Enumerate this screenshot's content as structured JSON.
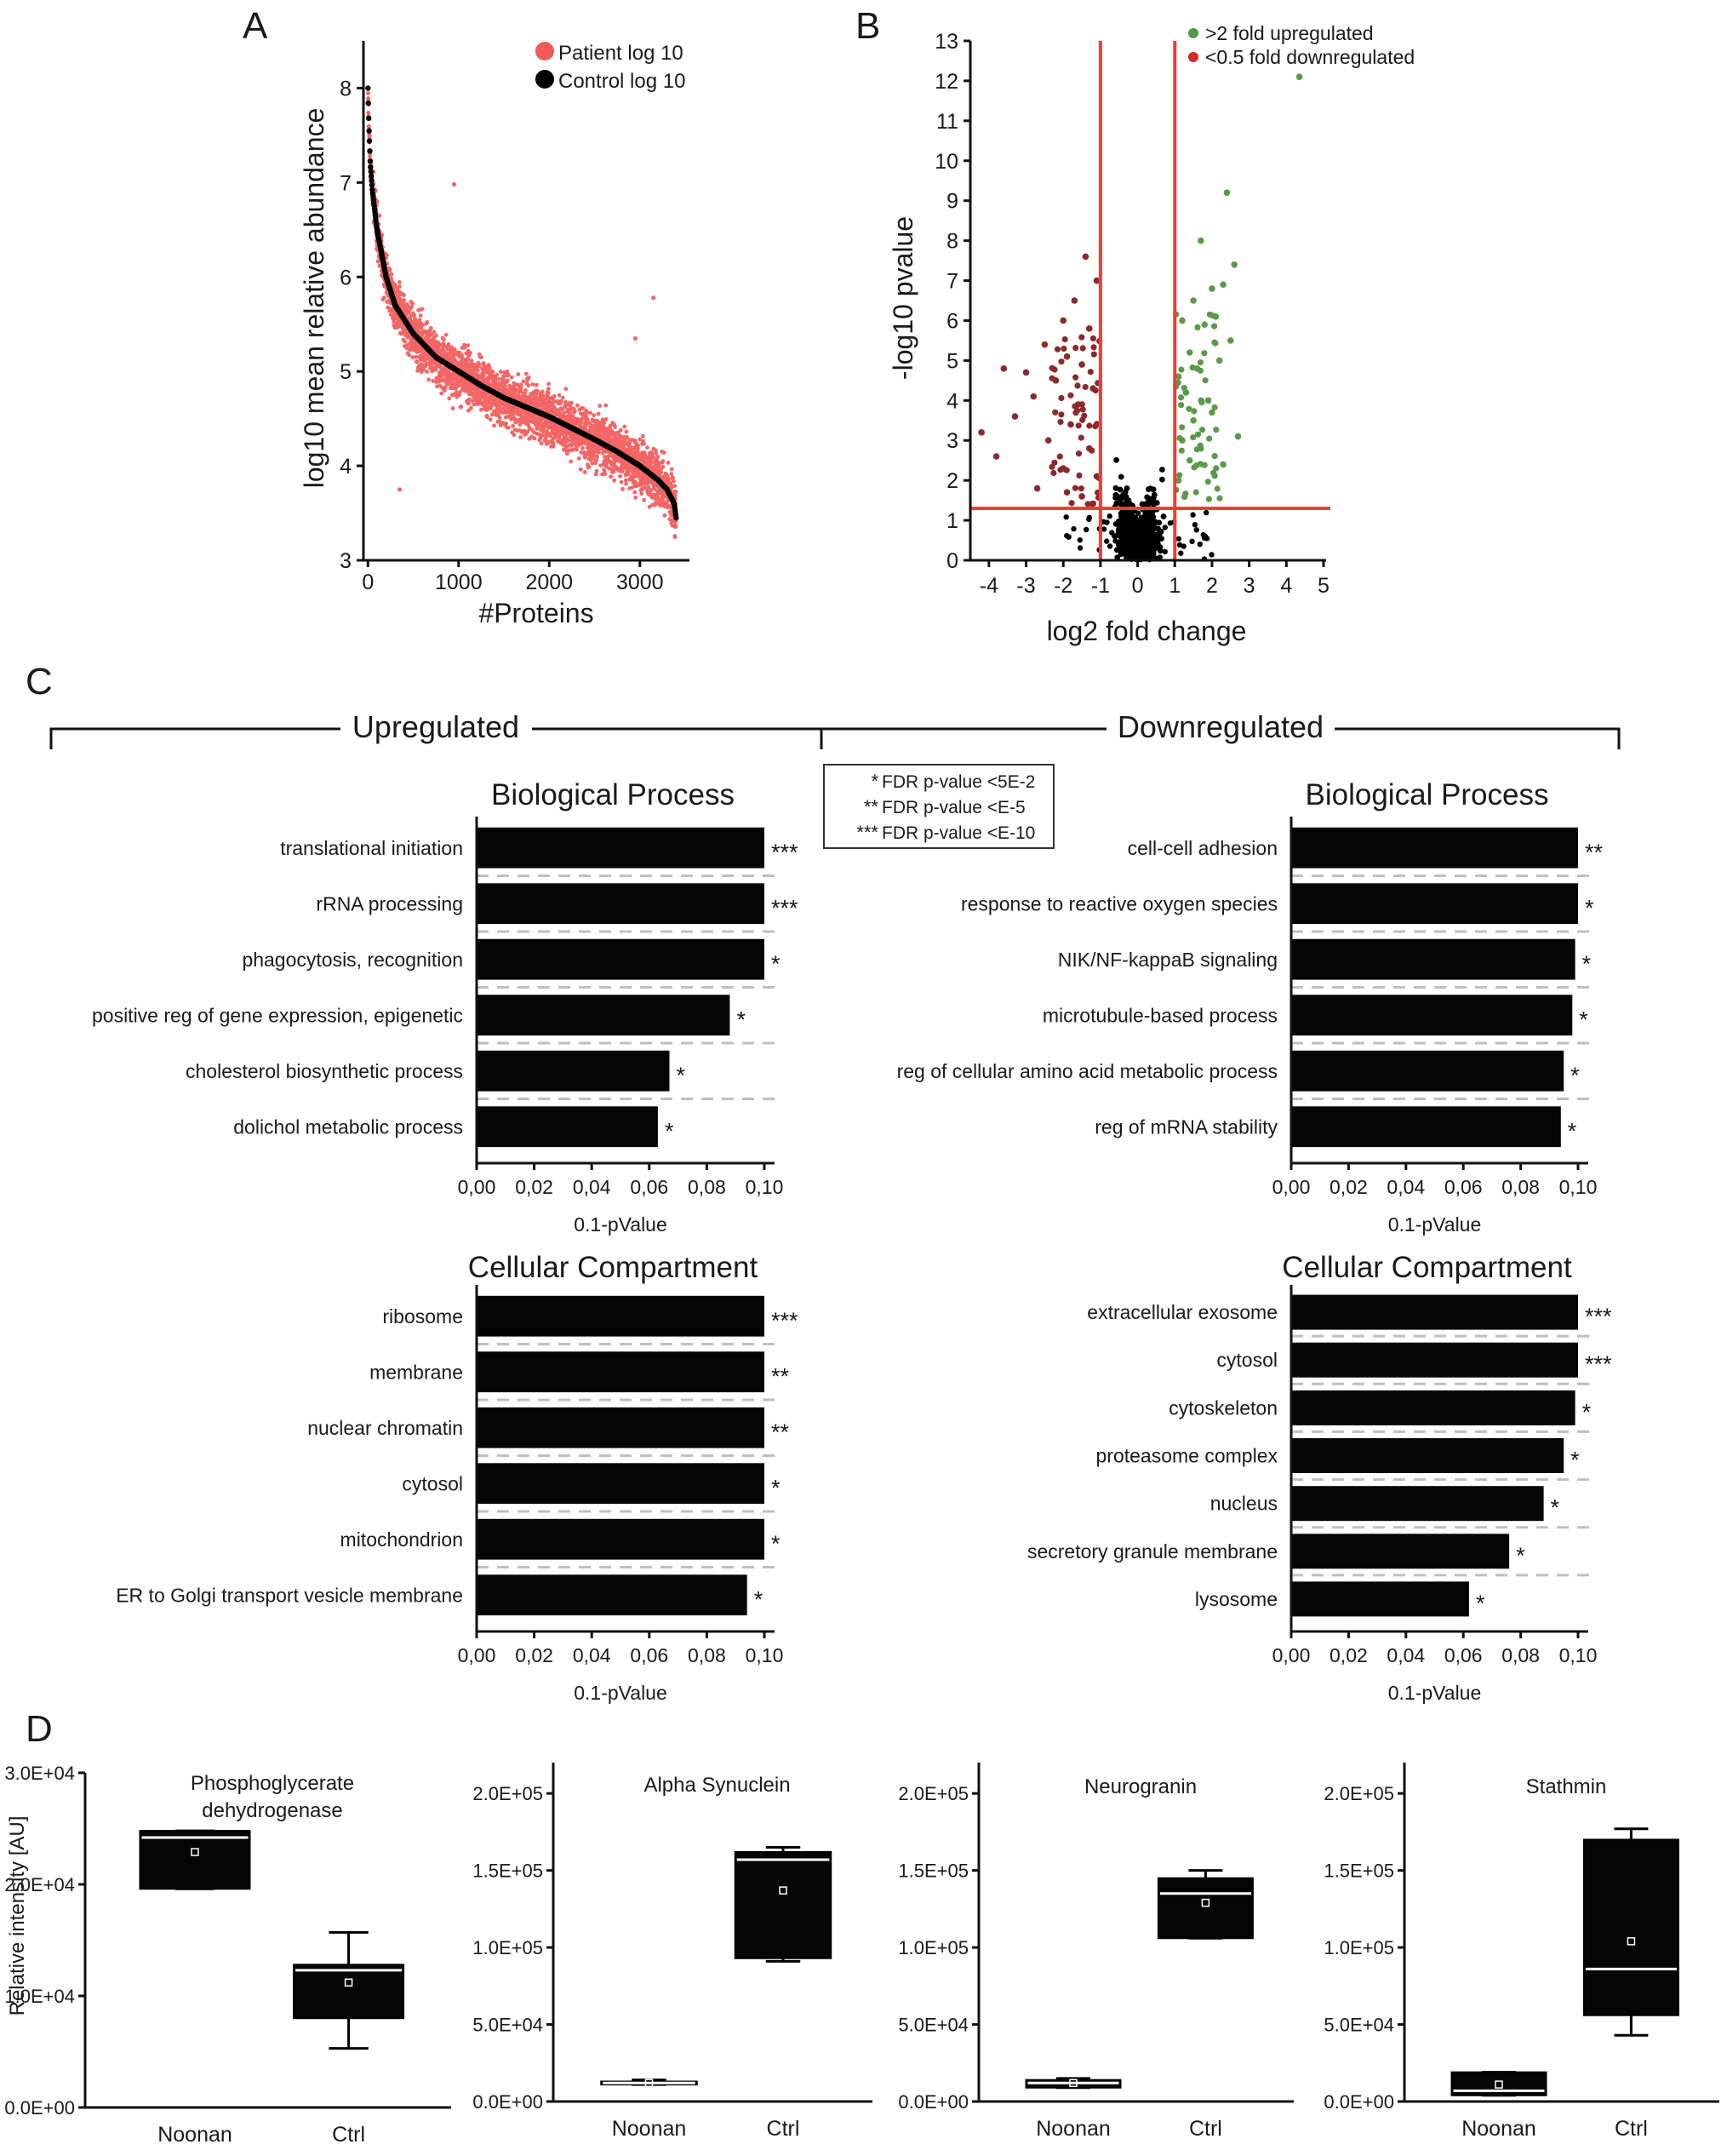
{
  "panels": {
    "a": {
      "label": "A",
      "chart_data": {
        "type": "scatter",
        "xlabel": "#Proteins",
        "ylabel": "log10 mean relative abundance",
        "xlim": [
          -50,
          3500
        ],
        "ylim": [
          3,
          8.5
        ],
        "xticks": [
          0,
          1000,
          2000,
          3000
        ],
        "yticks": [
          3,
          4,
          5,
          6,
          7,
          8
        ],
        "n_proteins": 3400,
        "legend": [
          {
            "name": "Patient log 10",
            "color": "#f05a5a"
          },
          {
            "name": "Control log 10",
            "color": "#000000"
          }
        ],
        "legend_position": "top-right",
        "series": [
          {
            "name": "Control log 10",
            "x": [
              0,
              10,
              25,
              50,
              100,
              200,
              300,
              500,
              750,
              1000,
              1250,
              1500,
              1750,
              2000,
              2250,
              2500,
              2750,
              3000,
              3200,
              3300,
              3380,
              3400
            ],
            "y": [
              8.0,
              7.6,
              7.2,
              6.9,
              6.5,
              6.0,
              5.7,
              5.4,
              5.15,
              5.0,
              4.85,
              4.72,
              4.62,
              4.52,
              4.4,
              4.28,
              4.15,
              4.0,
              3.85,
              3.75,
              3.6,
              3.45
            ]
          },
          {
            "name": "Patient log 10",
            "description_spread": 0.45,
            "outliers": [
              {
                "x": 950,
                "y": 6.98
              },
              {
                "x": 3150,
                "y": 5.78
              },
              {
                "x": 2950,
                "y": 5.35
              },
              {
                "x": 350,
                "y": 3.75
              }
            ]
          }
        ]
      }
    },
    "b": {
      "label": "B",
      "chart_data": {
        "type": "scatter",
        "xlabel": "log2 fold change",
        "ylabel": "-log10 pvalue",
        "xlim": [
          -4.5,
          5
        ],
        "ylim": [
          0,
          13
        ],
        "xticks": [
          -4,
          -3,
          -2,
          -1,
          0,
          1,
          2,
          3,
          4,
          5
        ],
        "yticks": [
          0,
          1,
          2,
          3,
          4,
          5,
          6,
          7,
          8,
          9,
          10,
          11,
          12,
          13
        ],
        "thresholds": {
          "x": [
            -1,
            1
          ],
          "y": 1.3
        },
        "legend": [
          {
            "name": ">2 fold upregulated",
            "color": "#4f9a46"
          },
          {
            "name": "<0.5 fold downregulated",
            "color": "#d42a2a"
          }
        ],
        "legend_position": "top-right",
        "series": [
          {
            "name": ">2 fold upregulated",
            "color": "#5a9a4a",
            "x": [
              4.35,
              2.4,
              1.7,
              2.6,
              2.0,
              2.3,
              1.5,
              2.1,
              1.2,
              1.8,
              2.5,
              1.4,
              2.2,
              1.6,
              1.1,
              1.3,
              1.9,
              2.0,
              1.5,
              2.7,
              1.2,
              1.7,
              1.4,
              2.3,
              1.1
            ],
            "y": [
              12.1,
              9.2,
              8.0,
              7.4,
              6.8,
              6.9,
              6.5,
              6.1,
              6.0,
              5.9,
              5.5,
              5.2,
              5.0,
              4.8,
              4.6,
              4.2,
              4.0,
              3.7,
              3.5,
              3.1,
              3.0,
              2.8,
              2.5,
              2.4,
              2.0
            ]
          },
          {
            "name": "<0.5 fold downregulated",
            "color": "#8a2a2a",
            "x": [
              -1.4,
              -1.1,
              -1.7,
              -2.0,
              -1.3,
              -2.5,
              -1.9,
              -1.5,
              -3.0,
              -2.2,
              -3.6,
              -1.2,
              -2.8,
              -1.6,
              -3.3,
              -1.8,
              -4.2,
              -2.4,
              -1.3,
              -3.8,
              -2.0,
              -1.1,
              -2.7,
              -1.5,
              -1.9
            ],
            "y": [
              7.6,
              7.0,
              6.5,
              6.0,
              5.8,
              5.4,
              5.1,
              4.9,
              4.7,
              4.5,
              4.8,
              4.3,
              4.1,
              3.9,
              3.6,
              3.4,
              3.2,
              3.0,
              2.8,
              2.6,
              2.3,
              2.1,
              1.8,
              1.6,
              1.7
            ]
          }
        ]
      }
    },
    "c": {
      "label": "C",
      "up_header": "Upregulated",
      "down_header": "Downregulated",
      "legend": [
        {
          "stars": "*",
          "text": "FDR p-value <5E-2"
        },
        {
          "stars": "**",
          "text": "FDR p-value <E-5"
        },
        {
          "stars": "***",
          "text": "FDR p-value <E-10"
        }
      ],
      "charts": [
        {
          "id": "up_bp",
          "type": "bar",
          "orientation": "horizontal",
          "title": "Biological Process",
          "xlabel": "0.1-pValue",
          "xlim": [
            0,
            0.1
          ],
          "xticks": [
            "0,00",
            "0,02",
            "0,04",
            "0,06",
            "0,08",
            "0,10"
          ],
          "categories": [
            "translational initiation",
            "rRNA processing",
            "phagocytosis, recognition",
            "positive reg  of gene expression, epigenetic",
            "cholesterol biosynthetic process",
            "dolichol metabolic process"
          ],
          "values": [
            0.1,
            0.1,
            0.1,
            0.088,
            0.067,
            0.063
          ],
          "stars": [
            "***",
            "***",
            "*",
            "*",
            "*",
            "*"
          ]
        },
        {
          "id": "down_bp",
          "type": "bar",
          "orientation": "horizontal",
          "title": "Biological Process",
          "xlabel": "0.1-pValue",
          "xlim": [
            0,
            0.1
          ],
          "xticks": [
            "0,00",
            "0,02",
            "0,04",
            "0,06",
            "0,08",
            "0,10"
          ],
          "categories": [
            "cell-cell adhesion",
            "response to reactive oxygen species",
            "NIK/NF-kappaB signaling",
            "microtubule-based process",
            "reg  of cellular amino acid metabolic process",
            "reg  of mRNA stability"
          ],
          "values": [
            0.1,
            0.1,
            0.099,
            0.098,
            0.095,
            0.094
          ],
          "stars": [
            "**",
            "*",
            "*",
            "*",
            "*",
            "*"
          ]
        },
        {
          "id": "up_cc",
          "type": "bar",
          "orientation": "horizontal",
          "title": "Cellular Compartment",
          "xlabel": "0.1-pValue",
          "xlim": [
            0,
            0.1
          ],
          "xticks": [
            "0,00",
            "0,02",
            "0,04",
            "0,06",
            "0,08",
            "0,10"
          ],
          "categories": [
            "ribosome",
            "membrane",
            "nuclear chromatin",
            "cytosol",
            "mitochondrion",
            "ER to Golgi transport vesicle membrane"
          ],
          "values": [
            0.1,
            0.1,
            0.1,
            0.1,
            0.1,
            0.094
          ],
          "stars": [
            "***",
            "**",
            "**",
            "*",
            "*",
            "*"
          ]
        },
        {
          "id": "down_cc",
          "type": "bar",
          "orientation": "horizontal",
          "title": "Cellular Compartment",
          "xlabel": "0.1-pValue",
          "xlim": [
            0,
            0.1
          ],
          "xticks": [
            "0,00",
            "0,02",
            "0,04",
            "0,06",
            "0,08",
            "0,10"
          ],
          "categories": [
            "extracellular exosome",
            "cytosol",
            "cytoskeleton",
            "proteasome complex",
            "nucleus",
            "secretory granule membrane",
            "lysosome"
          ],
          "values": [
            0.1,
            0.1,
            0.099,
            0.095,
            0.088,
            0.076,
            0.062
          ],
          "stars": [
            "***",
            "***",
            "*",
            "*",
            "*",
            "*",
            "*"
          ]
        }
      ]
    },
    "d": {
      "label": "D",
      "ylabel": "Relative intensity [AU]",
      "charts": [
        {
          "id": "pgdh",
          "type": "box",
          "title": [
            "Phosphoglycerate",
            "dehydrogenase"
          ],
          "ylim": [
            0,
            30000
          ],
          "yticks": [
            0,
            10000,
            20000,
            30000
          ],
          "ytick_labels": [
            "0.0E+00",
            "1.0E+04",
            "2.0E+04",
            "3.0E+04"
          ],
          "categories": [
            "Noonan",
            "Ctrl"
          ],
          "boxes": [
            {
              "group": "Noonan",
              "min": 19600,
              "q1": 19600,
              "median": 24200,
              "q3": 24800,
              "max": 24800,
              "mean": 22900
            },
            {
              "group": "Ctrl",
              "min": 5300,
              "q1": 8000,
              "median": 12300,
              "q3": 12800,
              "max": 15700,
              "mean": 11200
            }
          ]
        },
        {
          "id": "snca",
          "type": "box",
          "title": [
            "Alpha Synuclein"
          ],
          "ylim": [
            0,
            220000
          ],
          "yticks": [
            0,
            50000,
            100000,
            150000,
            200000
          ],
          "ytick_labels": [
            "0.0E+00",
            "5.0E+04",
            "1.0E+05",
            "1.5E+05",
            "2.0E+05"
          ],
          "categories": [
            "Noonan",
            "Ctrl"
          ],
          "boxes": [
            {
              "group": "Noonan",
              "min": 11000,
              "q1": 11000,
              "median": 12000,
              "q3": 13000,
              "max": 14000,
              "mean": 12000
            },
            {
              "group": "Ctrl",
              "min": 91000,
              "q1": 93000,
              "median": 157000,
              "q3": 162000,
              "max": 165000,
              "mean": 137000
            }
          ]
        },
        {
          "id": "nrgn",
          "type": "box",
          "title": [
            "Neurogranin"
          ],
          "ylim": [
            0,
            220000
          ],
          "yticks": [
            0,
            50000,
            100000,
            150000,
            200000
          ],
          "ytick_labels": [
            "0.0E+00",
            "5.0E+04",
            "1.0E+05",
            "1.5E+05",
            "2.0E+05"
          ],
          "categories": [
            "Noonan",
            "Ctrl"
          ],
          "boxes": [
            {
              "group": "Noonan",
              "min": 9000,
              "q1": 9000,
              "median": 12000,
              "q3": 14000,
              "max": 15000,
              "mean": 12000
            },
            {
              "group": "Ctrl",
              "min": 106000,
              "q1": 106000,
              "median": 135000,
              "q3": 145000,
              "max": 150000,
              "mean": 129000
            }
          ]
        },
        {
          "id": "stmn",
          "type": "box",
          "title": [
            "Stathmin"
          ],
          "ylim": [
            0,
            220000
          ],
          "yticks": [
            0,
            50000,
            100000,
            150000,
            200000
          ],
          "ytick_labels": [
            "0.0E+00",
            "5.0E+04",
            "1.0E+05",
            "1.5E+05",
            "2.0E+05"
          ],
          "categories": [
            "Noonan",
            "Ctrl"
          ],
          "boxes": [
            {
              "group": "Noonan",
              "min": 4000,
              "q1": 4000,
              "median": 7000,
              "q3": 19000,
              "max": 19000,
              "mean": 11000
            },
            {
              "group": "Ctrl",
              "min": 43000,
              "q1": 56000,
              "median": 86000,
              "q3": 170000,
              "max": 177000,
              "mean": 104000
            }
          ]
        }
      ]
    }
  }
}
